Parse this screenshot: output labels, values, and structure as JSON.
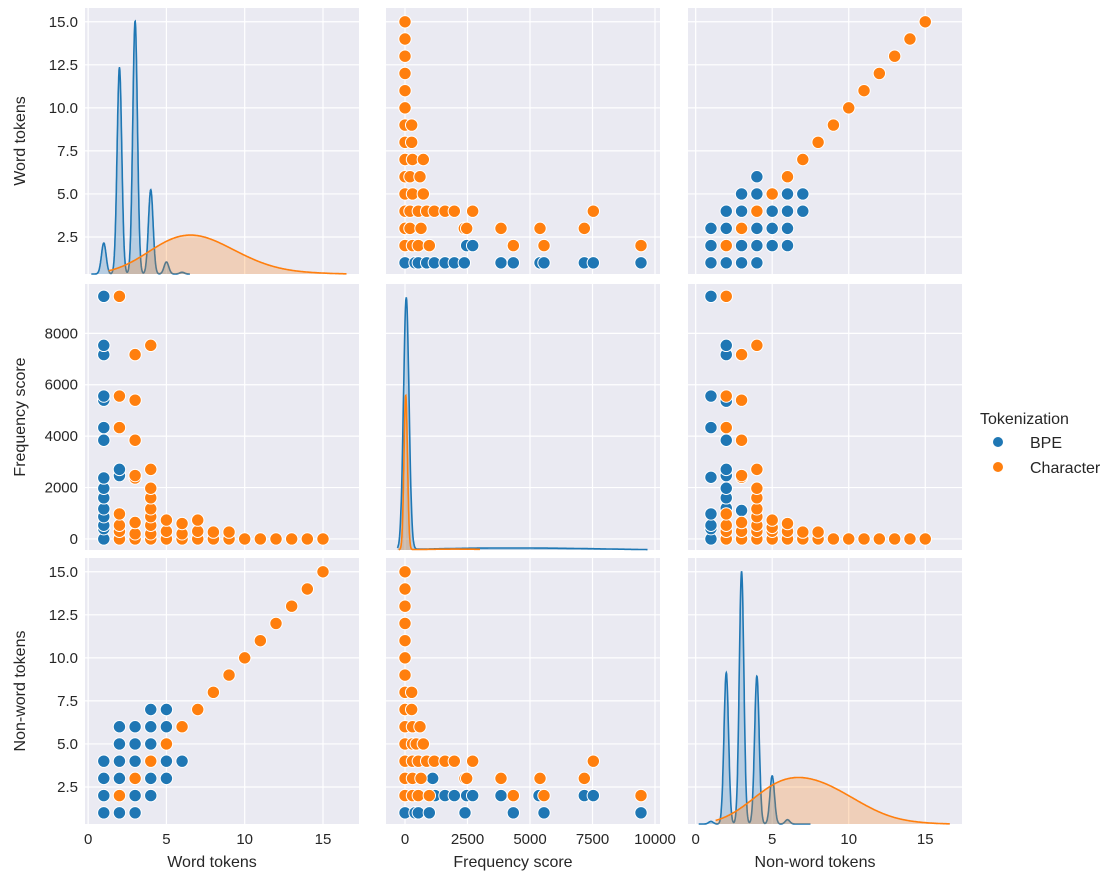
{
  "chart_data": {
    "type": "pairplot",
    "variables": [
      {
        "key": "word",
        "label": "Word tokens",
        "xlim": [
          -0.2,
          17.3
        ],
        "ylim": [
          0.35,
          15.8
        ],
        "xticks": [
          0,
          5,
          10,
          15
        ],
        "xtick_labels": [
          "0",
          "5",
          "10",
          "15"
        ],
        "yticks": [
          2.5,
          5.0,
          7.5,
          10.0,
          12.5,
          15.0
        ],
        "ytick_labels": [
          "2.5",
          "5.0",
          "7.5",
          "10.0",
          "12.5",
          "15.0"
        ]
      },
      {
        "key": "freq",
        "label": "Frequency score",
        "xlim": [
          -760,
          10200
        ],
        "ylim": [
          -430,
          9920
        ],
        "xticks": [
          0,
          2500,
          5000,
          7500,
          10000
        ],
        "xtick_labels": [
          "0",
          "2500",
          "5000",
          "7500",
          "10000"
        ],
        "yticks": [
          0,
          2000,
          4000,
          6000,
          8000
        ],
        "ytick_labels": [
          "0",
          "2000",
          "4000",
          "6000",
          "8000"
        ]
      },
      {
        "key": "nonword",
        "label": "Non-word tokens",
        "xlim": [
          -0.5,
          17.4
        ],
        "ylim": [
          0.35,
          15.8
        ],
        "xticks": [
          0,
          5,
          10,
          15
        ],
        "xtick_labels": [
          "0",
          "5",
          "10",
          "15"
        ],
        "yticks": [
          2.5,
          5.0,
          7.5,
          10.0,
          12.5,
          15.0
        ],
        "ytick_labels": [
          "2.5",
          "5.0",
          "7.5",
          "10.0",
          "12.5",
          "15.0"
        ]
      }
    ],
    "grid": true,
    "legend": {
      "title": "Tokenization",
      "placement": "right",
      "entries": [
        {
          "name": "BPE",
          "color": "#1f77b4"
        },
        {
          "name": "Character",
          "color": "#ff7f0e"
        }
      ]
    },
    "scatter": {
      "word_freq": {
        "BPE": [
          {
            "a": 1,
            "b": [
              0,
              400,
              533,
              867,
              1173,
              1600,
              1973,
              2373,
              3840,
              4333,
              5400,
              5560,
              7173,
              7533,
              9440
            ]
          },
          {
            "a": 2,
            "b": [
              2467,
              2707
            ]
          }
        ],
        "Character": [
          {
            "a": 2,
            "b": [
              0,
              300,
              533,
              973,
              4333,
              5560,
              9440
            ]
          },
          {
            "a": 3,
            "b": [
              0,
              200,
              640,
              2373,
              2467,
              3840,
              5400,
              7173
            ]
          },
          {
            "a": 4,
            "b": [
              0,
              200,
              533,
              867,
              1173,
              1600,
              1973,
              2707,
              7533
            ]
          },
          {
            "a": 5,
            "b": [
              0,
              300,
              733
            ]
          },
          {
            "a": 6,
            "b": [
              0,
              200,
              600
            ]
          },
          {
            "a": 7,
            "b": [
              0,
              300,
              733
            ]
          },
          {
            "a": 8,
            "b": [
              0,
              267
            ]
          },
          {
            "a": 9,
            "b": [
              0,
              267
            ]
          },
          {
            "a": 10,
            "b": [
              0
            ]
          },
          {
            "a": 11,
            "b": [
              0
            ]
          },
          {
            "a": 12,
            "b": [
              0
            ]
          },
          {
            "a": 13,
            "b": [
              0
            ]
          },
          {
            "a": 14,
            "b": [
              0
            ]
          },
          {
            "a": 15,
            "b": [
              0
            ]
          }
        ]
      },
      "nonword_freq": {
        "BPE": [
          {
            "a": 1,
            "b": [
              0,
              400,
              533,
              973,
              2400,
              4333,
              5560,
              9440
            ]
          },
          {
            "a": 2,
            "b": [
              1200,
              1600,
              1973,
              2467,
              2707,
              3840,
              5360,
              7173,
              7533
            ]
          },
          {
            "a": 3,
            "b": [
              1107
            ]
          }
        ],
        "Character": [
          {
            "a": 2,
            "b": [
              0,
              300,
              533,
              973,
              4333,
              5560,
              9440
            ]
          },
          {
            "a": 3,
            "b": [
              0,
              300,
              640,
              2400,
              2467,
              3840,
              5400,
              7173
            ]
          },
          {
            "a": 4,
            "b": [
              0,
              300,
              533,
              867,
              1173,
              1600,
              1973,
              2707,
              7533
            ]
          },
          {
            "a": 5,
            "b": [
              0,
              300,
              450,
              733
            ]
          },
          {
            "a": 6,
            "b": [
              0,
              300,
              600
            ]
          },
          {
            "a": 7,
            "b": [
              0,
              267
            ]
          },
          {
            "a": 8,
            "b": [
              0,
              267
            ]
          },
          {
            "a": 9,
            "b": [
              0
            ]
          },
          {
            "a": 10,
            "b": [
              0
            ]
          },
          {
            "a": 11,
            "b": [
              0
            ]
          },
          {
            "a": 12,
            "b": [
              0
            ]
          },
          {
            "a": 13,
            "b": [
              0
            ]
          },
          {
            "a": 14,
            "b": [
              0
            ]
          },
          {
            "a": 15,
            "b": [
              0
            ]
          }
        ]
      },
      "word_nonword": {
        "BPE": [
          {
            "a": 1,
            "b": [
              1,
              2,
              3,
              4
            ]
          },
          {
            "a": 2,
            "b": [
              1,
              3,
              4,
              5,
              6
            ]
          },
          {
            "a": 3,
            "b": [
              1,
              2,
              4,
              5,
              6
            ]
          },
          {
            "a": 4,
            "b": [
              2,
              3,
              5,
              6,
              7
            ]
          },
          {
            "a": 5,
            "b": [
              3,
              4,
              6,
              7
            ]
          },
          {
            "a": 6,
            "b": [
              4
            ]
          }
        ],
        "Character": [
          {
            "a": 2,
            "b": [
              2
            ]
          },
          {
            "a": 3,
            "b": [
              3
            ]
          },
          {
            "a": 4,
            "b": [
              4
            ]
          },
          {
            "a": 5,
            "b": [
              5
            ]
          },
          {
            "a": 6,
            "b": [
              6
            ]
          },
          {
            "a": 7,
            "b": [
              7
            ]
          },
          {
            "a": 8,
            "b": [
              8
            ]
          },
          {
            "a": 9,
            "b": [
              9
            ]
          },
          {
            "a": 10,
            "b": [
              10
            ]
          },
          {
            "a": 11,
            "b": [
              11
            ]
          },
          {
            "a": 12,
            "b": [
              12
            ]
          },
          {
            "a": 13,
            "b": [
              13
            ]
          },
          {
            "a": 14,
            "b": [
              14
            ]
          },
          {
            "a": 15,
            "b": [
              15
            ]
          }
        ]
      }
    },
    "kde": {
      "word": {
        "BPE": {
          "centers": [
            1,
            2,
            3,
            4,
            5,
            6
          ],
          "weights": [
            1.8,
            12.0,
            14.7,
            4.9,
            0.7,
            0.1
          ],
          "bw": 0.15,
          "range": [
            0.2,
            6.5
          ]
        },
        "Character": {
          "centers": [
            2,
            3,
            4,
            5,
            6,
            7,
            8,
            9,
            10,
            11,
            12,
            13,
            14,
            15
          ],
          "weights": [
            0.1,
            0.25,
            0.5,
            0.75,
            0.88,
            0.88,
            0.75,
            0.56,
            0.38,
            0.22,
            0.12,
            0.06,
            0.03,
            0.02
          ],
          "bw": 1.1,
          "range": [
            1.3,
            16.5
          ]
        }
      },
      "freq": {
        "BPE": {
          "centers": [
            50,
            3000,
            6500
          ],
          "weights": [
            14.7,
            0.09,
            0.07
          ],
          "bw": [
            110,
            2200,
            2200
          ],
          "range": [
            -300,
            9700
          ]
        },
        "Character": {
          "centers": [
            30,
            2000
          ],
          "weights": [
            9.0,
            0.05
          ],
          "bw": [
            70,
            1500
          ],
          "range": [
            -250,
            3000
          ]
        }
      },
      "nonword": {
        "BPE": {
          "centers": [
            1,
            2,
            3,
            4,
            5,
            6
          ],
          "weights": [
            0.15,
            8.8,
            14.7,
            8.6,
            2.8,
            0.25
          ],
          "bw": 0.15,
          "range": [
            0.2,
            7.5
          ]
        },
        "Character": {
          "centers": [
            2,
            3,
            4,
            5,
            6,
            7,
            8,
            9,
            10,
            11,
            12,
            13,
            14,
            15
          ],
          "weights": [
            0.1,
            0.3,
            0.6,
            0.9,
            1.03,
            1.03,
            0.95,
            0.8,
            0.6,
            0.4,
            0.22,
            0.1,
            0.05,
            0.02
          ],
          "bw": 1.1,
          "range": [
            1.3,
            16.6
          ]
        }
      }
    }
  }
}
